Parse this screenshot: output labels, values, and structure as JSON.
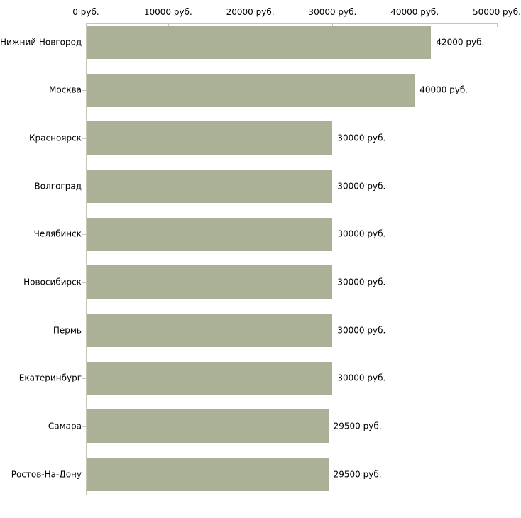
{
  "chart_data": {
    "type": "bar",
    "orientation": "horizontal",
    "title": "",
    "xlabel": "",
    "ylabel": "",
    "categories": [
      "Нижний Новгород",
      "Москва",
      "Красноярск",
      "Волгоград",
      "Челябинск",
      "Новосибирск",
      "Пермь",
      "Екатеринбург",
      "Самара",
      "Ростов-На-Дону"
    ],
    "values": [
      42000,
      40000,
      30000,
      30000,
      30000,
      30000,
      30000,
      30000,
      29500,
      29500
    ],
    "value_labels": [
      "42000 руб.",
      "40000 руб.",
      "30000 руб.",
      "30000 руб.",
      "30000 руб.",
      "30000 руб.",
      "30000 руб.",
      "30000 руб.",
      "29500 руб.",
      "29500 руб."
    ],
    "xlim": [
      0,
      50000
    ],
    "x_ticks": [
      0,
      10000,
      20000,
      30000,
      40000,
      50000
    ],
    "x_tick_labels": [
      "0 руб.",
      "10000 руб.",
      "20000 руб.",
      "30000 руб.",
      "40000 руб.",
      "50000 руб."
    ],
    "grid": false,
    "legend": "none",
    "bar_color": "#abb196",
    "axis_color": "#c6c6b8",
    "text_color": "#000000"
  }
}
